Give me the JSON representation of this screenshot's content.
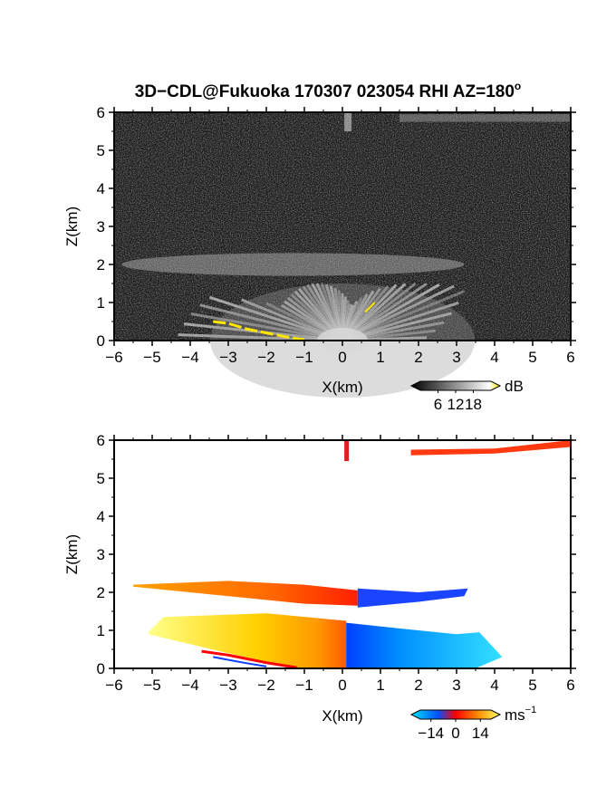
{
  "title": "3D−CDL@Fukuoka 170307 023054 RHI AZ=180",
  "title_degree": "o",
  "chart_data": [
    {
      "type": "heatmap",
      "panel": "intensity",
      "xlabel": "X(km)",
      "ylabel": "Z(km)",
      "xlim": [
        -6,
        6
      ],
      "ylim": [
        0,
        6
      ],
      "x_ticks": [
        "−6",
        "−5",
        "−4",
        "−3",
        "−2",
        "−1",
        "0",
        "1",
        "2",
        "3",
        "4",
        "5",
        "6"
      ],
      "y_ticks": [
        "0",
        "1",
        "2",
        "3",
        "4",
        "5",
        "6"
      ],
      "colorbar": {
        "unit": "dB",
        "ticks": [
          "6",
          "12",
          "18"
        ],
        "range": [
          0,
          24
        ],
        "colors": [
          "#000000",
          "#ffffff",
          "#ffe600"
        ]
      },
      "features": [
        {
          "name": "near-field fan",
          "x_range": [
            -4.5,
            3.5
          ],
          "z_range": [
            0,
            1.5
          ]
        },
        {
          "name": "upper layer",
          "x_range": [
            -5.8,
            3.2
          ],
          "z_range": [
            1.7,
            2.3
          ]
        },
        {
          "name": "elevated band",
          "x_range": [
            1.5,
            6.0
          ],
          "z_range": [
            5.75,
            5.95
          ]
        },
        {
          "name": "ground clutter",
          "x_range": [
            -3.4,
            -1.0
          ],
          "z_range": [
            0,
            0.5
          ]
        }
      ]
    },
    {
      "type": "heatmap",
      "panel": "radial velocity",
      "xlabel": "X(km)",
      "ylabel": "Z(km)",
      "xlim": [
        -6,
        6
      ],
      "ylim": [
        0,
        6
      ],
      "x_ticks": [
        "−6",
        "−5",
        "−4",
        "−3",
        "−2",
        "−1",
        "0",
        "1",
        "2",
        "3",
        "4",
        "5",
        "6"
      ],
      "y_ticks": [
        "0",
        "1",
        "2",
        "3",
        "4",
        "5",
        "6"
      ],
      "colorbar": {
        "unit": "ms",
        "unit_exp": "−1",
        "ticks": [
          "−14",
          "0",
          "14"
        ],
        "range": [
          -20,
          20
        ],
        "colors": [
          "#00e5ff",
          "#0050ff",
          "#ff0000",
          "#ff8c00",
          "#ffff66"
        ]
      },
      "regions": [
        {
          "name": "lower layer west",
          "x_range": [
            -5.1,
            0.1
          ],
          "z_range": [
            0,
            1.45
          ],
          "velocity": 12
        },
        {
          "name": "lower layer east",
          "x_range": [
            0.1,
            4.2
          ],
          "z_range": [
            0,
            1.2
          ],
          "velocity": -13
        },
        {
          "name": "upper layer west",
          "x_range": [
            -5.5,
            0.4
          ],
          "z_range": [
            1.7,
            2.3
          ],
          "velocity": 4
        },
        {
          "name": "upper layer east",
          "x_range": [
            0.4,
            3.3
          ],
          "z_range": [
            1.6,
            2.1
          ],
          "velocity": -7
        },
        {
          "name": "top band",
          "x_range": [
            1.8,
            6.0
          ],
          "z_range": [
            5.6,
            6.0
          ],
          "velocity": 3
        }
      ]
    }
  ]
}
